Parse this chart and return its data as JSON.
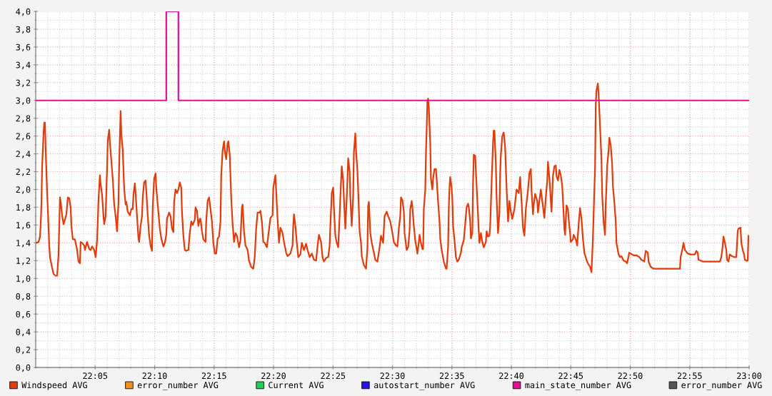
{
  "chart_data": {
    "type": "line",
    "xlim": [
      22.0,
      23.0
    ],
    "ylim": [
      0,
      4.0
    ],
    "xticks": [
      {
        "value": 22.0833,
        "label": "22:05"
      },
      {
        "value": 22.1667,
        "label": "22:10"
      },
      {
        "value": 22.25,
        "label": "22:15"
      },
      {
        "value": 22.3333,
        "label": "22:20"
      },
      {
        "value": 22.4167,
        "label": "22:25"
      },
      {
        "value": 22.5,
        "label": "22:30"
      },
      {
        "value": 22.5833,
        "label": "22:35"
      },
      {
        "value": 22.6667,
        "label": "22:40"
      },
      {
        "value": 22.75,
        "label": "22:45"
      },
      {
        "value": 22.8333,
        "label": "22:50"
      },
      {
        "value": 22.9167,
        "label": "22:55"
      },
      {
        "value": 23.0,
        "label": "23:00"
      }
    ],
    "yticks": [
      {
        "value": 0,
        "label": "0,0"
      },
      {
        "value": 0.2,
        "label": "0,2"
      },
      {
        "value": 0.4,
        "label": "0,4"
      },
      {
        "value": 0.6,
        "label": "0,6"
      },
      {
        "value": 0.8,
        "label": "0,8"
      },
      {
        "value": 1.0,
        "label": "1,0"
      },
      {
        "value": 1.2,
        "label": "1,2"
      },
      {
        "value": 1.4,
        "label": "1,4"
      },
      {
        "value": 1.6,
        "label": "1,6"
      },
      {
        "value": 1.8,
        "label": "1,8"
      },
      {
        "value": 2.0,
        "label": "2,0"
      },
      {
        "value": 2.2,
        "label": "2,2"
      },
      {
        "value": 2.4,
        "label": "2,4"
      },
      {
        "value": 2.6,
        "label": "2,6"
      },
      {
        "value": 2.8,
        "label": "2,8"
      },
      {
        "value": 3.0,
        "label": "3,0"
      },
      {
        "value": 3.2,
        "label": "3,2"
      },
      {
        "value": 3.4,
        "label": "3,4"
      },
      {
        "value": 3.6,
        "label": "3,6"
      },
      {
        "value": 3.8,
        "label": "3,8"
      },
      {
        "value": 4.0,
        "label": "4,0"
      }
    ],
    "grid": true,
    "legend": "bottom",
    "series": [
      {
        "name": "Windspeed AVG",
        "color": "#e03c0c",
        "x": [
          22.001,
          22.004,
          22.006,
          22.007,
          22.008,
          22.009,
          22.011,
          22.012,
          22.013,
          22.014,
          22.016,
          22.017,
          22.019,
          22.02,
          22.023,
          22.025,
          22.028,
          22.03,
          22.032,
          22.034,
          22.035,
          22.037,
          22.039,
          22.041,
          22.043,
          22.045,
          22.047,
          22.049,
          22.05,
          22.052,
          22.055,
          22.058,
          22.06,
          22.062,
          22.063,
          22.065,
          22.068,
          22.069,
          22.072,
          22.075,
          22.077,
          22.079,
          22.082,
          22.084,
          22.086,
          22.087,
          22.088,
          22.09,
          22.091,
          22.093,
          22.095,
          22.096,
          22.098,
          22.1,
          22.101,
          22.103,
          22.104,
          22.106,
          22.108,
          22.11,
          22.112,
          22.114,
          22.116,
          22.117,
          22.119,
          22.12,
          22.122,
          22.124,
          22.126,
          22.127,
          22.129,
          22.132,
          22.134,
          22.136,
          22.137,
          22.139,
          22.14,
          22.142,
          22.144,
          22.145,
          22.147,
          22.149,
          22.15,
          22.152,
          22.154,
          22.155,
          22.157,
          22.159,
          22.161,
          22.163,
          22.164,
          22.166,
          22.168,
          22.169,
          22.171,
          22.174,
          22.176,
          22.179,
          22.181,
          22.183,
          22.184,
          22.187,
          22.189,
          22.191,
          22.193,
          22.194,
          22.196,
          22.198,
          22.2,
          22.202,
          22.204,
          22.205,
          22.207,
          22.209,
          22.211,
          22.214,
          22.216,
          22.218,
          22.22,
          22.223,
          22.224,
          22.226,
          22.228,
          22.23,
          22.231,
          22.233,
          22.235,
          22.238,
          22.239,
          22.241,
          22.243,
          22.245,
          22.247,
          22.249,
          22.251,
          22.253,
          22.255,
          22.257,
          22.259,
          22.26,
          22.262,
          22.264,
          22.265,
          22.267,
          22.269,
          22.27,
          22.272,
          22.274,
          22.276,
          22.278,
          22.28,
          22.282,
          22.285,
          22.287,
          22.289,
          22.29,
          22.292,
          22.294,
          22.297,
          22.299,
          22.302,
          22.305,
          22.307,
          22.309,
          22.311,
          22.314,
          22.315,
          22.317,
          22.319,
          22.321,
          22.324,
          22.327,
          22.329,
          22.332,
          22.333,
          22.336,
          22.337,
          22.339,
          22.341,
          22.343,
          22.346,
          22.348,
          22.351,
          22.353,
          22.357,
          22.36,
          22.361,
          22.362,
          22.364,
          22.366,
          22.368,
          22.371,
          22.373,
          22.376,
          22.379,
          22.381,
          22.384,
          22.387,
          22.39,
          22.393,
          22.395,
          22.397,
          22.4,
          22.402,
          22.404,
          22.407,
          22.41,
          22.412,
          22.413,
          22.415,
          22.417,
          22.418,
          22.42,
          22.422,
          22.424,
          22.426,
          22.427,
          22.429,
          22.431,
          22.432,
          22.434,
          22.436,
          22.438,
          22.44,
          22.441,
          22.443,
          22.445,
          22.446,
          22.448,
          22.449,
          22.451,
          22.452,
          22.454,
          22.456,
          22.457,
          22.46,
          22.463,
          22.465,
          22.466,
          22.467,
          22.469,
          22.471,
          22.474,
          22.476,
          22.479,
          22.482,
          22.484,
          22.487,
          22.489,
          22.492,
          22.494,
          22.497,
          22.5,
          22.502,
          22.505,
          22.507,
          22.509,
          22.511,
          22.512,
          22.514,
          22.516,
          22.517,
          22.52,
          22.522,
          22.524,
          22.525,
          22.527,
          22.528,
          22.53,
          22.532,
          22.535,
          22.537,
          22.538,
          22.54,
          22.542,
          22.543,
          22.544,
          22.546,
          22.547,
          22.548,
          22.549,
          22.55,
          22.551,
          22.553,
          22.554,
          22.556,
          22.557,
          22.559,
          22.561,
          22.562,
          22.564,
          22.566,
          22.567,
          22.569,
          22.572,
          22.575,
          22.576,
          22.578,
          22.579,
          22.58,
          22.581,
          22.583,
          22.584,
          22.585,
          22.587,
          22.589,
          22.591,
          22.593,
          22.596,
          22.597,
          22.6,
          22.602,
          22.604,
          22.606,
          22.607,
          22.609,
          22.61,
          22.612,
          22.613,
          22.614,
          22.616,
          22.617,
          22.619,
          22.621,
          22.622,
          22.624,
          22.626,
          22.628,
          22.631,
          22.632,
          22.634,
          22.636,
          22.637,
          22.639,
          22.641,
          22.642,
          22.643,
          22.645,
          22.646,
          22.648,
          22.65,
          22.651,
          22.652,
          22.654,
          22.656,
          22.658,
          22.66,
          22.662,
          22.664,
          22.666,
          22.668,
          22.671,
          22.674,
          22.677,
          22.679,
          22.681,
          22.683,
          22.685,
          22.687,
          22.69,
          22.692,
          22.694,
          22.695,
          22.697,
          22.698,
          22.7,
          22.703,
          22.704,
          22.706,
          22.708,
          22.71,
          22.713,
          22.715,
          22.717,
          22.718,
          22.72,
          22.722,
          22.723,
          22.725,
          22.727,
          22.729,
          22.73,
          22.732,
          22.734,
          22.736,
          22.738,
          22.739,
          22.741,
          22.742,
          22.744,
          22.746,
          22.747,
          22.749,
          22.75,
          22.753,
          22.754,
          22.757,
          22.759,
          22.761,
          22.763,
          22.765,
          22.767,
          22.769,
          22.772,
          22.774,
          22.777,
          22.779,
          22.781,
          22.783,
          22.784,
          22.785,
          22.786,
          22.788,
          22.789,
          22.791,
          22.793,
          22.794,
          22.796,
          22.798,
          22.799,
          22.801,
          22.803,
          22.804,
          22.806,
          22.808,
          22.809,
          22.811,
          22.813,
          22.814,
          22.817,
          22.819,
          22.821,
          22.824,
          22.827,
          22.829,
          22.832,
          22.834,
          22.838,
          22.842,
          22.844,
          22.846,
          22.849,
          22.853,
          22.855,
          22.858,
          22.859,
          22.862,
          22.866,
          22.903,
          22.904,
          22.907,
          22.908,
          22.91,
          22.914,
          22.918,
          22.924,
          22.926,
          22.928,
          22.929,
          22.932,
          22.935,
          22.959,
          22.961,
          22.963,
          22.964,
          22.966,
          22.968,
          22.969,
          22.971,
          22.973,
          22.976,
          22.979,
          22.982,
          22.984,
          22.985,
          22.988,
          22.989,
          22.991,
          22.993,
          22.994,
          22.996,
          22.998,
          22.999
        ],
        "values": [
          1.4,
          1.41,
          1.47,
          1.61,
          1.83,
          2.26,
          2.63,
          2.75,
          2.75,
          2.44,
          1.96,
          1.78,
          1.37,
          1.24,
          1.12,
          1.05,
          1.03,
          1.03,
          1.27,
          1.91,
          1.86,
          1.71,
          1.61,
          1.66,
          1.72,
          1.91,
          1.9,
          1.8,
          1.59,
          1.44,
          1.44,
          1.32,
          1.19,
          1.17,
          1.41,
          1.4,
          1.37,
          1.32,
          1.41,
          1.33,
          1.32,
          1.36,
          1.32,
          1.24,
          1.43,
          1.64,
          1.88,
          2.16,
          2.06,
          1.94,
          1.7,
          1.61,
          1.7,
          2.23,
          2.55,
          2.67,
          2.53,
          2.32,
          2.12,
          1.83,
          1.7,
          1.53,
          1.86,
          2.28,
          2.88,
          2.63,
          2.44,
          2.01,
          1.83,
          1.86,
          1.75,
          1.71,
          1.78,
          1.78,
          1.94,
          2.07,
          1.96,
          1.7,
          1.45,
          1.41,
          1.59,
          1.7,
          1.91,
          2.08,
          2.1,
          1.99,
          1.71,
          1.48,
          1.37,
          1.31,
          1.8,
          2.12,
          2.18,
          2.02,
          1.83,
          1.56,
          1.45,
          1.36,
          1.4,
          1.49,
          1.67,
          1.74,
          1.7,
          1.56,
          1.52,
          1.86,
          2.0,
          1.96,
          2.0,
          2.08,
          2.02,
          1.75,
          1.48,
          1.32,
          1.31,
          1.32,
          1.51,
          1.64,
          1.6,
          1.66,
          1.8,
          1.76,
          1.59,
          1.67,
          1.67,
          1.53,
          1.44,
          1.41,
          1.64,
          1.87,
          1.91,
          1.78,
          1.64,
          1.4,
          1.28,
          1.28,
          1.45,
          1.47,
          1.64,
          2.15,
          2.44,
          2.54,
          2.44,
          2.34,
          2.52,
          2.54,
          2.39,
          1.91,
          1.61,
          1.41,
          1.51,
          1.48,
          1.35,
          1.43,
          1.8,
          1.83,
          1.53,
          1.37,
          1.32,
          1.2,
          1.13,
          1.11,
          1.24,
          1.56,
          1.74,
          1.74,
          1.76,
          1.64,
          1.41,
          1.4,
          1.35,
          1.55,
          1.68,
          1.71,
          2.02,
          2.16,
          1.99,
          1.67,
          1.4,
          1.57,
          1.51,
          1.41,
          1.29,
          1.25,
          1.28,
          1.37,
          1.6,
          1.72,
          1.59,
          1.4,
          1.24,
          1.27,
          1.4,
          1.32,
          1.39,
          1.32,
          1.24,
          1.28,
          1.21,
          1.2,
          1.36,
          1.49,
          1.41,
          1.24,
          1.19,
          1.23,
          1.24,
          1.37,
          1.59,
          1.96,
          2.02,
          1.8,
          1.48,
          1.4,
          1.35,
          1.7,
          1.91,
          2.26,
          2.1,
          1.9,
          1.56,
          1.91,
          2.35,
          2.2,
          1.91,
          1.59,
          1.94,
          2.42,
          2.63,
          2.44,
          2.2,
          1.99,
          1.53,
          1.4,
          1.25,
          1.15,
          1.11,
          1.35,
          1.82,
          1.86,
          1.51,
          1.4,
          1.29,
          1.21,
          1.19,
          1.35,
          1.48,
          1.4,
          1.7,
          1.75,
          1.7,
          1.64,
          1.51,
          1.41,
          1.37,
          1.36,
          1.56,
          1.7,
          1.91,
          1.88,
          1.75,
          1.51,
          1.32,
          1.35,
          1.53,
          1.78,
          1.87,
          1.8,
          1.59,
          1.43,
          1.28,
          1.41,
          1.49,
          1.4,
          1.33,
          1.33,
          1.78,
          1.99,
          2.4,
          2.68,
          2.99,
          3.02,
          2.93,
          2.52,
          2.12,
          2.0,
          2.12,
          2.23,
          2.23,
          2.12,
          1.86,
          1.64,
          1.45,
          1.32,
          1.19,
          1.11,
          1.11,
          1.35,
          1.78,
          2.02,
          2.14,
          2.02,
          1.88,
          1.59,
          1.43,
          1.24,
          1.19,
          1.21,
          1.29,
          1.35,
          1.43,
          1.61,
          1.8,
          1.84,
          1.8,
          1.64,
          1.45,
          1.51,
          2.07,
          2.39,
          2.38,
          2.2,
          1.88,
          1.53,
          1.4,
          1.51,
          1.41,
          1.35,
          1.41,
          1.53,
          1.47,
          1.48,
          1.59,
          2.07,
          2.52,
          2.66,
          2.66,
          2.28,
          1.91,
          1.51,
          1.75,
          2.18,
          2.39,
          2.6,
          2.64,
          2.47,
          2.02,
          1.64,
          1.87,
          1.75,
          1.67,
          1.78,
          2.0,
          1.96,
          2.14,
          1.87,
          1.57,
          1.48,
          1.78,
          1.99,
          2.18,
          2.23,
          1.99,
          1.72,
          1.82,
          1.95,
          1.87,
          1.74,
          1.87,
          2.0,
          1.87,
          1.68,
          1.91,
          2.1,
          2.31,
          2.13,
          1.88,
          1.75,
          2.15,
          2.26,
          2.27,
          2.15,
          2.1,
          2.22,
          2.16,
          2.04,
          1.88,
          1.56,
          1.49,
          1.82,
          1.78,
          1.67,
          1.51,
          1.41,
          1.44,
          1.49,
          1.44,
          1.37,
          1.61,
          1.79,
          1.67,
          1.45,
          1.29,
          1.21,
          1.17,
          1.13,
          1.07,
          1.45,
          1.99,
          2.23,
          2.95,
          3.11,
          3.19,
          3.07,
          2.71,
          2.34,
          1.94,
          1.64,
          1.49,
          1.83,
          2.26,
          2.44,
          2.58,
          2.5,
          2.28,
          2.04,
          1.86,
          1.64,
          1.4,
          1.27,
          1.24,
          1.25,
          1.2,
          1.19,
          1.17,
          1.29,
          1.28,
          1.26,
          1.26,
          1.25,
          1.24,
          1.21,
          1.19,
          1.31,
          1.29,
          1.19,
          1.13,
          1.11,
          1.11,
          1.24,
          1.35,
          1.4,
          1.32,
          1.28,
          1.27,
          1.27,
          1.31,
          1.29,
          1.21,
          1.2,
          1.19,
          1.19,
          1.24,
          1.37,
          1.47,
          1.4,
          1.32,
          1.21,
          1.19,
          1.27,
          1.25,
          1.24,
          1.24,
          1.53,
          1.56,
          1.57,
          1.4,
          1.32,
          1.27,
          1.21,
          1.2,
          1.2,
          1.48
        ]
      },
      {
        "name": "error_number AVG",
        "color": "#f0901a"
      },
      {
        "name": "Current AVG",
        "color": "#22d050"
      },
      {
        "name": "autostart_number AVG",
        "color": "#2814e6"
      },
      {
        "name": "main_state_number AVG",
        "color": "#e0109c",
        "type": "step",
        "x": [
          22.0,
          22.183,
          22.2,
          23.0
        ],
        "values": [
          3.0,
          4.0,
          3.0,
          3.0
        ]
      },
      {
        "name": "error_number AVG",
        "color": "#555555"
      }
    ]
  }
}
